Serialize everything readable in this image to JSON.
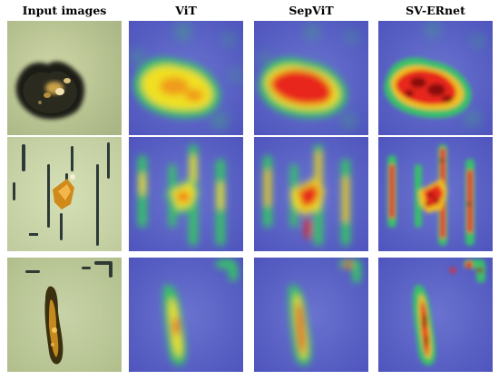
{
  "columns": [
    {
      "key": "input",
      "label": "Input images"
    },
    {
      "key": "vit",
      "label": "ViT"
    },
    {
      "key": "sepvit",
      "label": "SepViT"
    },
    {
      "key": "sverenet",
      "label": "SV-ERnet"
    }
  ],
  "rows": [
    {
      "key": "row1",
      "description_icon": "mineral-grain-icon"
    },
    {
      "key": "row2",
      "description_icon": "mineral-grain-icon"
    },
    {
      "key": "row3",
      "description_icon": "mineral-grain-icon"
    }
  ],
  "colors": {
    "heat_low": "#5a5fc8",
    "heat_mid": "#39c06a",
    "heat_high": "#f0e020",
    "heat_peak": "#e8281a",
    "heat_max": "#8a0a10",
    "micro_bg": "#c6cf9c"
  }
}
